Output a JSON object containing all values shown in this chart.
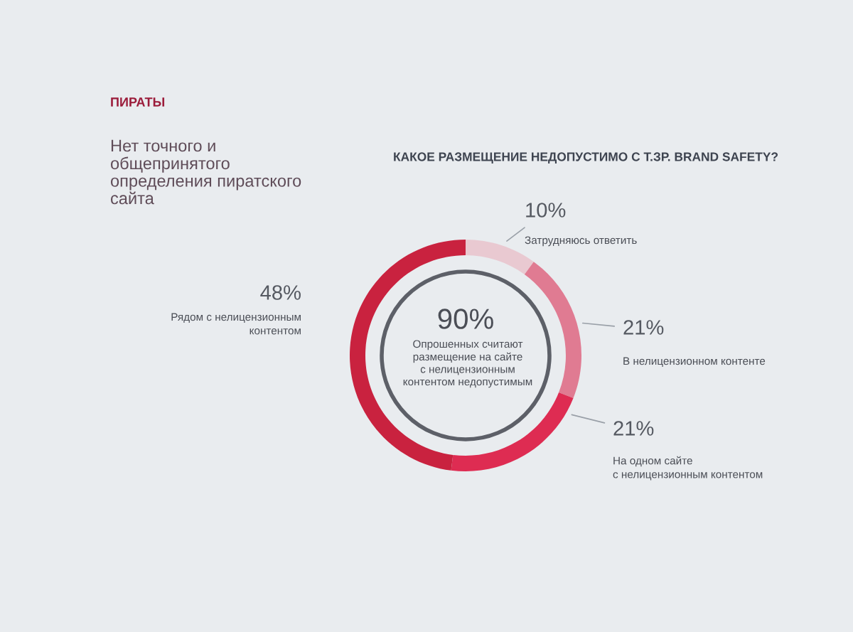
{
  "chart_data": {
    "type": "donut",
    "title": "КАКОЕ РАЗМЕЩЕНИЕ НЕДОПУСТИМО С Т.ЗР. BRAND SAFETY?",
    "categories": [
      "Затрудняюсь ответить",
      "В нелицензионном контенте",
      "На одном сайте\nс нелицензионным контентом",
      "Рядом с нелицензионным\nконтентом"
    ],
    "values": [
      10,
      21,
      21,
      48
    ],
    "colors": [
      "#e9c9d1",
      "#e07b92",
      "#de2c52",
      "#c9223f"
    ],
    "value_labels": [
      "10%",
      "21%",
      "21%",
      "48%"
    ],
    "annotations": [
      "ПИРАТЫ",
      "Нет точного и\nобщепринятого\nопределения пиратского\nсайта",
      "90%",
      "Опрошенных считают\nразмещение на сайте\nс нелицензионным\nконтентом недопустимым"
    ]
  }
}
